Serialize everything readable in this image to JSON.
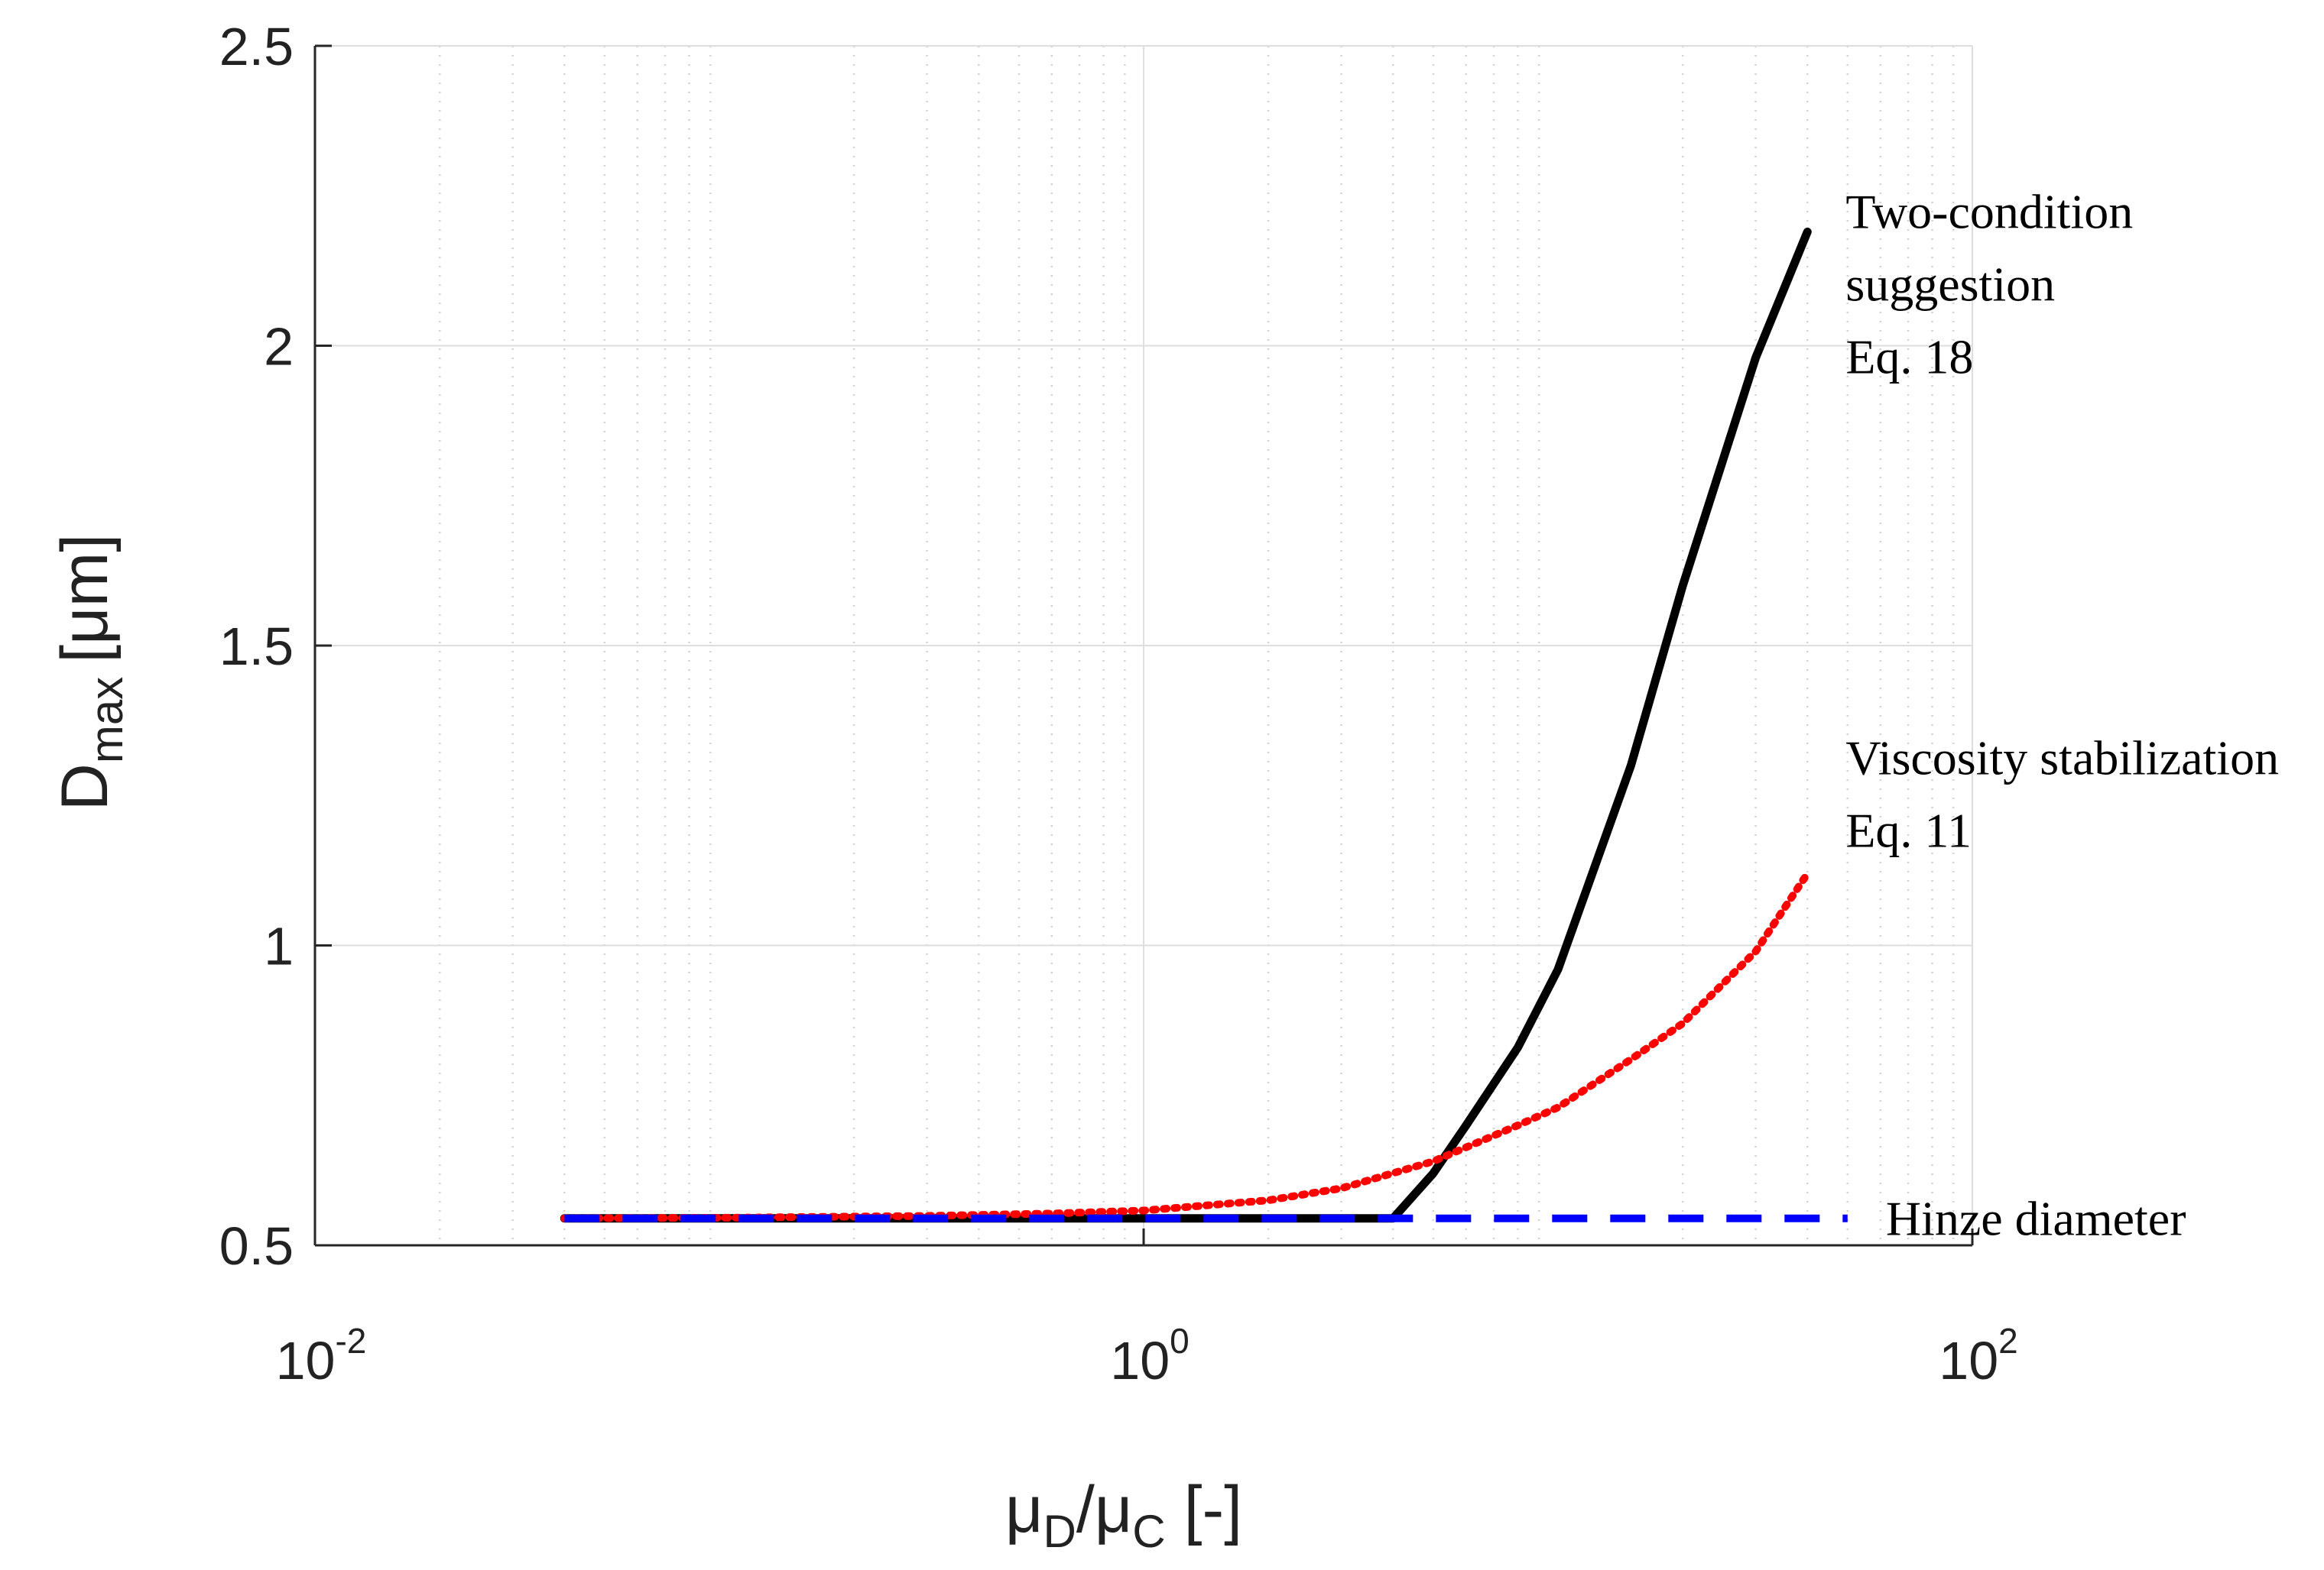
{
  "chart_data": {
    "type": "line",
    "title": "",
    "xscale": "log",
    "xlim": [
      0.01,
      100
    ],
    "ylim": [
      0.5,
      2.5
    ],
    "grid": true,
    "xlabel": {
      "mu1": "μ",
      "sub1": "D",
      "slash": "/",
      "mu2": "μ",
      "sub2": "C",
      "unit": "[-]"
    },
    "ylabel": {
      "main": "D",
      "sub": "max",
      "unit": "[μm]"
    },
    "xticks": [
      {
        "value": 0.01,
        "base": "10",
        "exp": "-2"
      },
      {
        "value": 1,
        "base": "10",
        "exp": "0"
      },
      {
        "value": 100,
        "base": "10",
        "exp": "2"
      }
    ],
    "yticks": [
      {
        "value": 0.5,
        "label": "0.5"
      },
      {
        "value": 1,
        "label": "1"
      },
      {
        "value": 1.5,
        "label": "1.5"
      },
      {
        "value": 2,
        "label": "2"
      },
      {
        "value": 2.5,
        "label": "2.5"
      }
    ],
    "series": [
      {
        "name": "Two-condition suggestion Eq. 18",
        "color": "#000000",
        "style": "solid",
        "x": [
          0.04,
          0.1,
          0.5,
          1,
          2,
          4,
          5,
          6,
          8,
          10,
          15,
          20,
          30,
          40
        ],
        "y": [
          0.545,
          0.545,
          0.545,
          0.545,
          0.545,
          0.545,
          0.62,
          0.7,
          0.83,
          0.96,
          1.3,
          1.6,
          1.98,
          2.19
        ]
      },
      {
        "name": "Viscosity stabilization Eq. 11",
        "color": "#ff0000",
        "style": "dotted",
        "x": [
          0.04,
          0.1,
          0.3,
          0.6,
          1,
          2,
          3,
          5,
          8,
          10,
          15,
          20,
          30,
          40
        ],
        "y": [
          0.545,
          0.546,
          0.549,
          0.553,
          0.558,
          0.575,
          0.595,
          0.64,
          0.7,
          0.73,
          0.81,
          0.87,
          0.99,
          1.12
        ]
      },
      {
        "name": "Hinze diameter",
        "color": "#0000ff",
        "style": "dashed",
        "x": [
          0.04,
          50
        ],
        "y": [
          0.545,
          0.545
        ]
      }
    ],
    "annotations": [
      {
        "series": 0,
        "lines": [
          "Two-condition",
          "suggestion",
          "Eq. 18"
        ]
      },
      {
        "series": 1,
        "lines": [
          "Viscosity stabilization",
          "Eq. 11"
        ]
      },
      {
        "series": 2,
        "lines": [
          "Hinze diameter"
        ]
      }
    ]
  }
}
